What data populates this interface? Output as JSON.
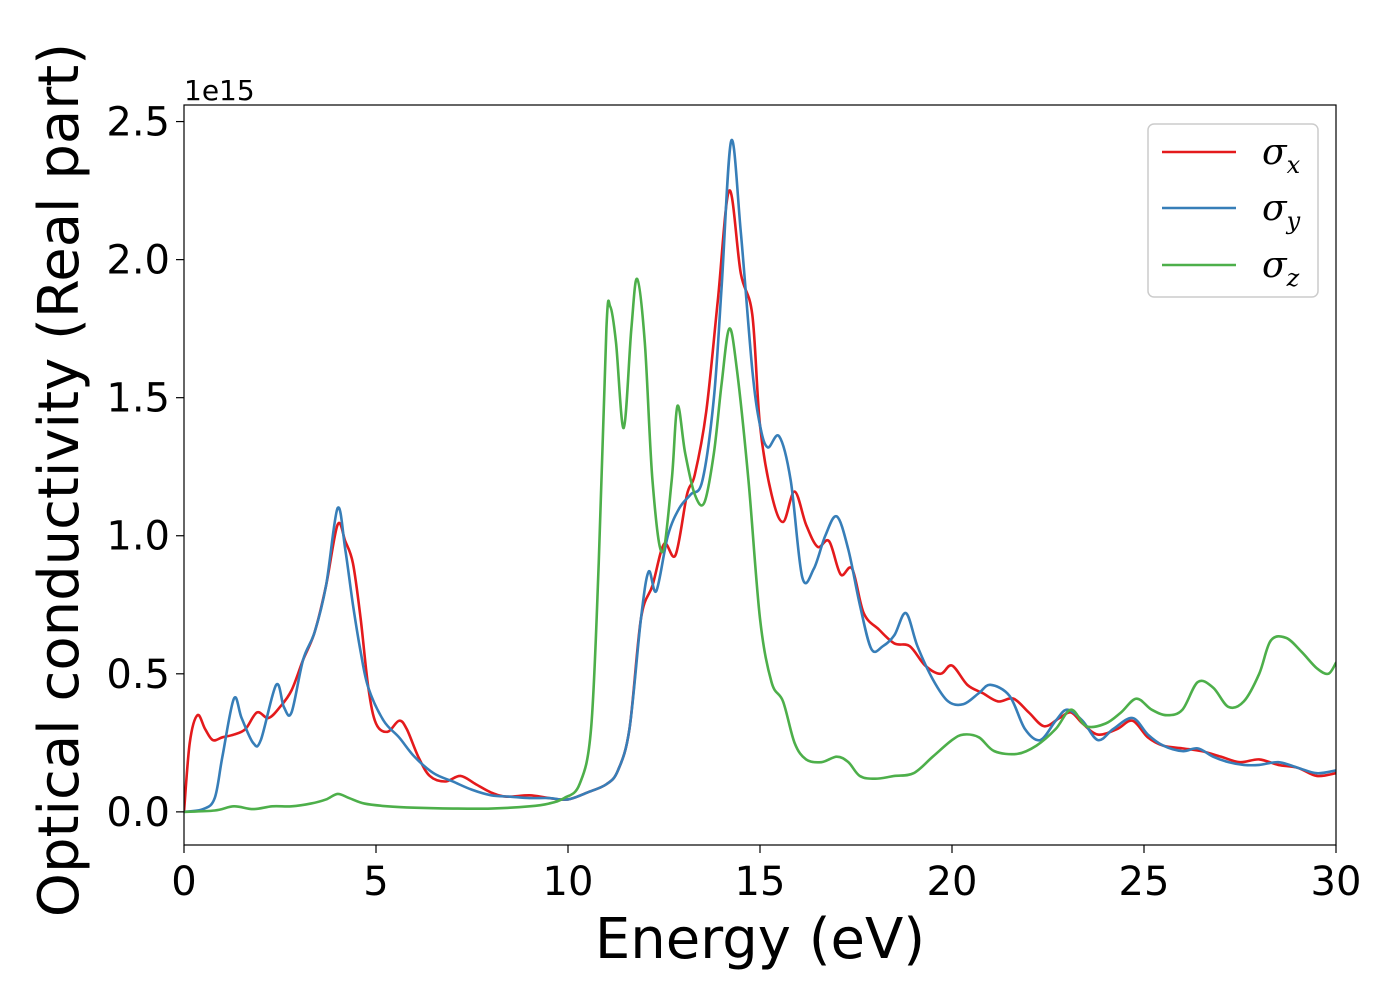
{
  "chart_data": {
    "type": "line",
    "xlabel": "Energy (eV)",
    "ylabel": "Optical conductivity (Real part)",
    "y_offset_label": "1e15",
    "xlim": [
      0,
      30
    ],
    "ylim": [
      -0.12,
      2.56
    ],
    "x_ticks": [
      0,
      5,
      10,
      15,
      20,
      25,
      30
    ],
    "x_tick_labels": [
      "0",
      "5",
      "10",
      "15",
      "20",
      "25",
      "30"
    ],
    "y_ticks": [
      0.0,
      0.5,
      1.0,
      1.5,
      2.0,
      2.5
    ],
    "y_tick_labels": [
      "0.0",
      "0.5",
      "1.0",
      "1.5",
      "2.0",
      "2.5"
    ],
    "grid": false,
    "legend_position": "top-right",
    "series": [
      {
        "name": "σx",
        "legend_symbol": "σ",
        "legend_subscript": "x",
        "color": "#e41a1c",
        "points": [
          [
            0,
            0
          ],
          [
            0.15,
            0.25
          ],
          [
            0.35,
            0.35
          ],
          [
            0.55,
            0.3
          ],
          [
            0.75,
            0.26
          ],
          [
            1.0,
            0.27
          ],
          [
            1.3,
            0.28
          ],
          [
            1.6,
            0.3
          ],
          [
            1.9,
            0.36
          ],
          [
            2.2,
            0.34
          ],
          [
            2.5,
            0.38
          ],
          [
            2.8,
            0.44
          ],
          [
            3.1,
            0.55
          ],
          [
            3.4,
            0.65
          ],
          [
            3.7,
            0.82
          ],
          [
            4.0,
            1.04
          ],
          [
            4.2,
            0.98
          ],
          [
            4.4,
            0.9
          ],
          [
            4.6,
            0.7
          ],
          [
            4.8,
            0.45
          ],
          [
            5.0,
            0.32
          ],
          [
            5.3,
            0.29
          ],
          [
            5.6,
            0.33
          ],
          [
            5.8,
            0.3
          ],
          [
            6.1,
            0.2
          ],
          [
            6.4,
            0.13
          ],
          [
            6.8,
            0.11
          ],
          [
            7.2,
            0.13
          ],
          [
            7.6,
            0.1
          ],
          [
            8.0,
            0.07
          ],
          [
            8.4,
            0.055
          ],
          [
            9.0,
            0.06
          ],
          [
            9.5,
            0.05
          ],
          [
            10.0,
            0.045
          ],
          [
            10.5,
            0.07
          ],
          [
            11.0,
            0.1
          ],
          [
            11.3,
            0.15
          ],
          [
            11.6,
            0.3
          ],
          [
            11.9,
            0.7
          ],
          [
            12.2,
            0.82
          ],
          [
            12.5,
            0.97
          ],
          [
            12.8,
            0.93
          ],
          [
            13.1,
            1.15
          ],
          [
            13.3,
            1.22
          ],
          [
            13.6,
            1.45
          ],
          [
            13.9,
            1.85
          ],
          [
            14.2,
            2.25
          ],
          [
            14.5,
            1.95
          ],
          [
            14.8,
            1.8
          ],
          [
            15.0,
            1.4
          ],
          [
            15.3,
            1.15
          ],
          [
            15.6,
            1.05
          ],
          [
            15.9,
            1.16
          ],
          [
            16.2,
            1.04
          ],
          [
            16.5,
            0.96
          ],
          [
            16.8,
            0.98
          ],
          [
            17.1,
            0.86
          ],
          [
            17.4,
            0.88
          ],
          [
            17.7,
            0.72
          ],
          [
            18.1,
            0.66
          ],
          [
            18.5,
            0.61
          ],
          [
            18.9,
            0.6
          ],
          [
            19.3,
            0.53
          ],
          [
            19.7,
            0.5
          ],
          [
            20.0,
            0.53
          ],
          [
            20.4,
            0.46
          ],
          [
            20.8,
            0.43
          ],
          [
            21.2,
            0.4
          ],
          [
            21.6,
            0.41
          ],
          [
            22.0,
            0.36
          ],
          [
            22.4,
            0.31
          ],
          [
            22.8,
            0.34
          ],
          [
            23.1,
            0.36
          ],
          [
            23.4,
            0.32
          ],
          [
            23.8,
            0.28
          ],
          [
            24.3,
            0.3
          ],
          [
            24.7,
            0.33
          ],
          [
            25.1,
            0.27
          ],
          [
            25.5,
            0.24
          ],
          [
            26.0,
            0.23
          ],
          [
            26.5,
            0.22
          ],
          [
            27.0,
            0.2
          ],
          [
            27.5,
            0.18
          ],
          [
            28.0,
            0.19
          ],
          [
            28.5,
            0.17
          ],
          [
            29.0,
            0.16
          ],
          [
            29.5,
            0.13
          ],
          [
            30.0,
            0.14
          ]
        ]
      },
      {
        "name": "σy",
        "legend_symbol": "σ",
        "legend_subscript": "y",
        "color": "#377eb8",
        "points": [
          [
            0,
            0
          ],
          [
            0.5,
            0.01
          ],
          [
            0.8,
            0.05
          ],
          [
            1.0,
            0.2
          ],
          [
            1.3,
            0.41
          ],
          [
            1.5,
            0.34
          ],
          [
            1.8,
            0.25
          ],
          [
            2.0,
            0.26
          ],
          [
            2.4,
            0.46
          ],
          [
            2.6,
            0.38
          ],
          [
            2.8,
            0.36
          ],
          [
            3.1,
            0.55
          ],
          [
            3.4,
            0.65
          ],
          [
            3.7,
            0.82
          ],
          [
            4.0,
            1.1
          ],
          [
            4.2,
            0.95
          ],
          [
            4.4,
            0.75
          ],
          [
            4.6,
            0.58
          ],
          [
            4.8,
            0.45
          ],
          [
            5.2,
            0.33
          ],
          [
            5.6,
            0.27
          ],
          [
            6.0,
            0.2
          ],
          [
            6.5,
            0.14
          ],
          [
            7.0,
            0.11
          ],
          [
            7.5,
            0.08
          ],
          [
            8.0,
            0.06
          ],
          [
            8.5,
            0.055
          ],
          [
            9.0,
            0.05
          ],
          [
            9.5,
            0.05
          ],
          [
            10.0,
            0.045
          ],
          [
            10.5,
            0.07
          ],
          [
            11.0,
            0.1
          ],
          [
            11.3,
            0.15
          ],
          [
            11.6,
            0.3
          ],
          [
            11.9,
            0.7
          ],
          [
            12.1,
            0.87
          ],
          [
            12.3,
            0.8
          ],
          [
            12.6,
            1.0
          ],
          [
            12.9,
            1.1
          ],
          [
            13.2,
            1.15
          ],
          [
            13.5,
            1.2
          ],
          [
            13.8,
            1.5
          ],
          [
            14.0,
            1.9
          ],
          [
            14.25,
            2.43
          ],
          [
            14.5,
            2.1
          ],
          [
            14.8,
            1.6
          ],
          [
            15.0,
            1.4
          ],
          [
            15.2,
            1.32
          ],
          [
            15.5,
            1.36
          ],
          [
            15.8,
            1.2
          ],
          [
            16.1,
            0.85
          ],
          [
            16.4,
            0.88
          ],
          [
            16.7,
            1.0
          ],
          [
            17.0,
            1.07
          ],
          [
            17.3,
            0.95
          ],
          [
            17.6,
            0.75
          ],
          [
            17.9,
            0.59
          ],
          [
            18.2,
            0.6
          ],
          [
            18.5,
            0.64
          ],
          [
            18.8,
            0.72
          ],
          [
            19.1,
            0.6
          ],
          [
            19.5,
            0.48
          ],
          [
            19.9,
            0.4
          ],
          [
            20.3,
            0.39
          ],
          [
            20.7,
            0.43
          ],
          [
            21.0,
            0.46
          ],
          [
            21.5,
            0.42
          ],
          [
            21.9,
            0.3
          ],
          [
            22.3,
            0.26
          ],
          [
            22.7,
            0.33
          ],
          [
            23.0,
            0.37
          ],
          [
            23.4,
            0.33
          ],
          [
            23.8,
            0.26
          ],
          [
            24.2,
            0.3
          ],
          [
            24.7,
            0.34
          ],
          [
            25.1,
            0.28
          ],
          [
            25.5,
            0.24
          ],
          [
            26.0,
            0.22
          ],
          [
            26.4,
            0.23
          ],
          [
            26.8,
            0.2
          ],
          [
            27.2,
            0.18
          ],
          [
            27.6,
            0.17
          ],
          [
            28.0,
            0.17
          ],
          [
            28.5,
            0.18
          ],
          [
            29.0,
            0.16
          ],
          [
            29.5,
            0.14
          ],
          [
            30.0,
            0.15
          ]
        ]
      },
      {
        "name": "σz",
        "legend_symbol": "σ",
        "legend_subscript": "z",
        "color": "#4daf4a",
        "points": [
          [
            0,
            0
          ],
          [
            0.8,
            0.005
          ],
          [
            1.3,
            0.02
          ],
          [
            1.8,
            0.01
          ],
          [
            2.3,
            0.02
          ],
          [
            2.8,
            0.02
          ],
          [
            3.3,
            0.03
          ],
          [
            3.7,
            0.045
          ],
          [
            4.0,
            0.065
          ],
          [
            4.3,
            0.05
          ],
          [
            4.7,
            0.03
          ],
          [
            5.3,
            0.02
          ],
          [
            6.0,
            0.015
          ],
          [
            7.0,
            0.012
          ],
          [
            8.0,
            0.012
          ],
          [
            9.0,
            0.02
          ],
          [
            9.5,
            0.03
          ],
          [
            9.9,
            0.05
          ],
          [
            10.3,
            0.1
          ],
          [
            10.6,
            0.3
          ],
          [
            10.8,
            0.9
          ],
          [
            11.0,
            1.75
          ],
          [
            11.1,
            1.83
          ],
          [
            11.25,
            1.7
          ],
          [
            11.45,
            1.39
          ],
          [
            11.65,
            1.75
          ],
          [
            11.8,
            1.93
          ],
          [
            12.0,
            1.7
          ],
          [
            12.2,
            1.2
          ],
          [
            12.45,
            0.94
          ],
          [
            12.7,
            1.2
          ],
          [
            12.85,
            1.47
          ],
          [
            13.05,
            1.3
          ],
          [
            13.3,
            1.15
          ],
          [
            13.55,
            1.12
          ],
          [
            13.8,
            1.3
          ],
          [
            14.0,
            1.55
          ],
          [
            14.2,
            1.75
          ],
          [
            14.4,
            1.6
          ],
          [
            14.7,
            1.2
          ],
          [
            15.0,
            0.7
          ],
          [
            15.3,
            0.47
          ],
          [
            15.6,
            0.4
          ],
          [
            15.9,
            0.25
          ],
          [
            16.2,
            0.19
          ],
          [
            16.6,
            0.18
          ],
          [
            17.0,
            0.2
          ],
          [
            17.3,
            0.18
          ],
          [
            17.6,
            0.13
          ],
          [
            18.0,
            0.12
          ],
          [
            18.5,
            0.13
          ],
          [
            19.0,
            0.14
          ],
          [
            19.5,
            0.2
          ],
          [
            20.0,
            0.26
          ],
          [
            20.3,
            0.28
          ],
          [
            20.7,
            0.27
          ],
          [
            21.1,
            0.22
          ],
          [
            21.7,
            0.21
          ],
          [
            22.2,
            0.24
          ],
          [
            22.7,
            0.3
          ],
          [
            23.1,
            0.37
          ],
          [
            23.5,
            0.31
          ],
          [
            24.0,
            0.32
          ],
          [
            24.4,
            0.36
          ],
          [
            24.8,
            0.41
          ],
          [
            25.2,
            0.37
          ],
          [
            25.6,
            0.35
          ],
          [
            26.0,
            0.37
          ],
          [
            26.4,
            0.47
          ],
          [
            26.8,
            0.45
          ],
          [
            27.2,
            0.38
          ],
          [
            27.6,
            0.4
          ],
          [
            28.0,
            0.5
          ],
          [
            28.3,
            0.62
          ],
          [
            28.7,
            0.63
          ],
          [
            29.1,
            0.58
          ],
          [
            29.5,
            0.52
          ],
          [
            29.8,
            0.5
          ],
          [
            30.0,
            0.54
          ]
        ]
      }
    ]
  }
}
